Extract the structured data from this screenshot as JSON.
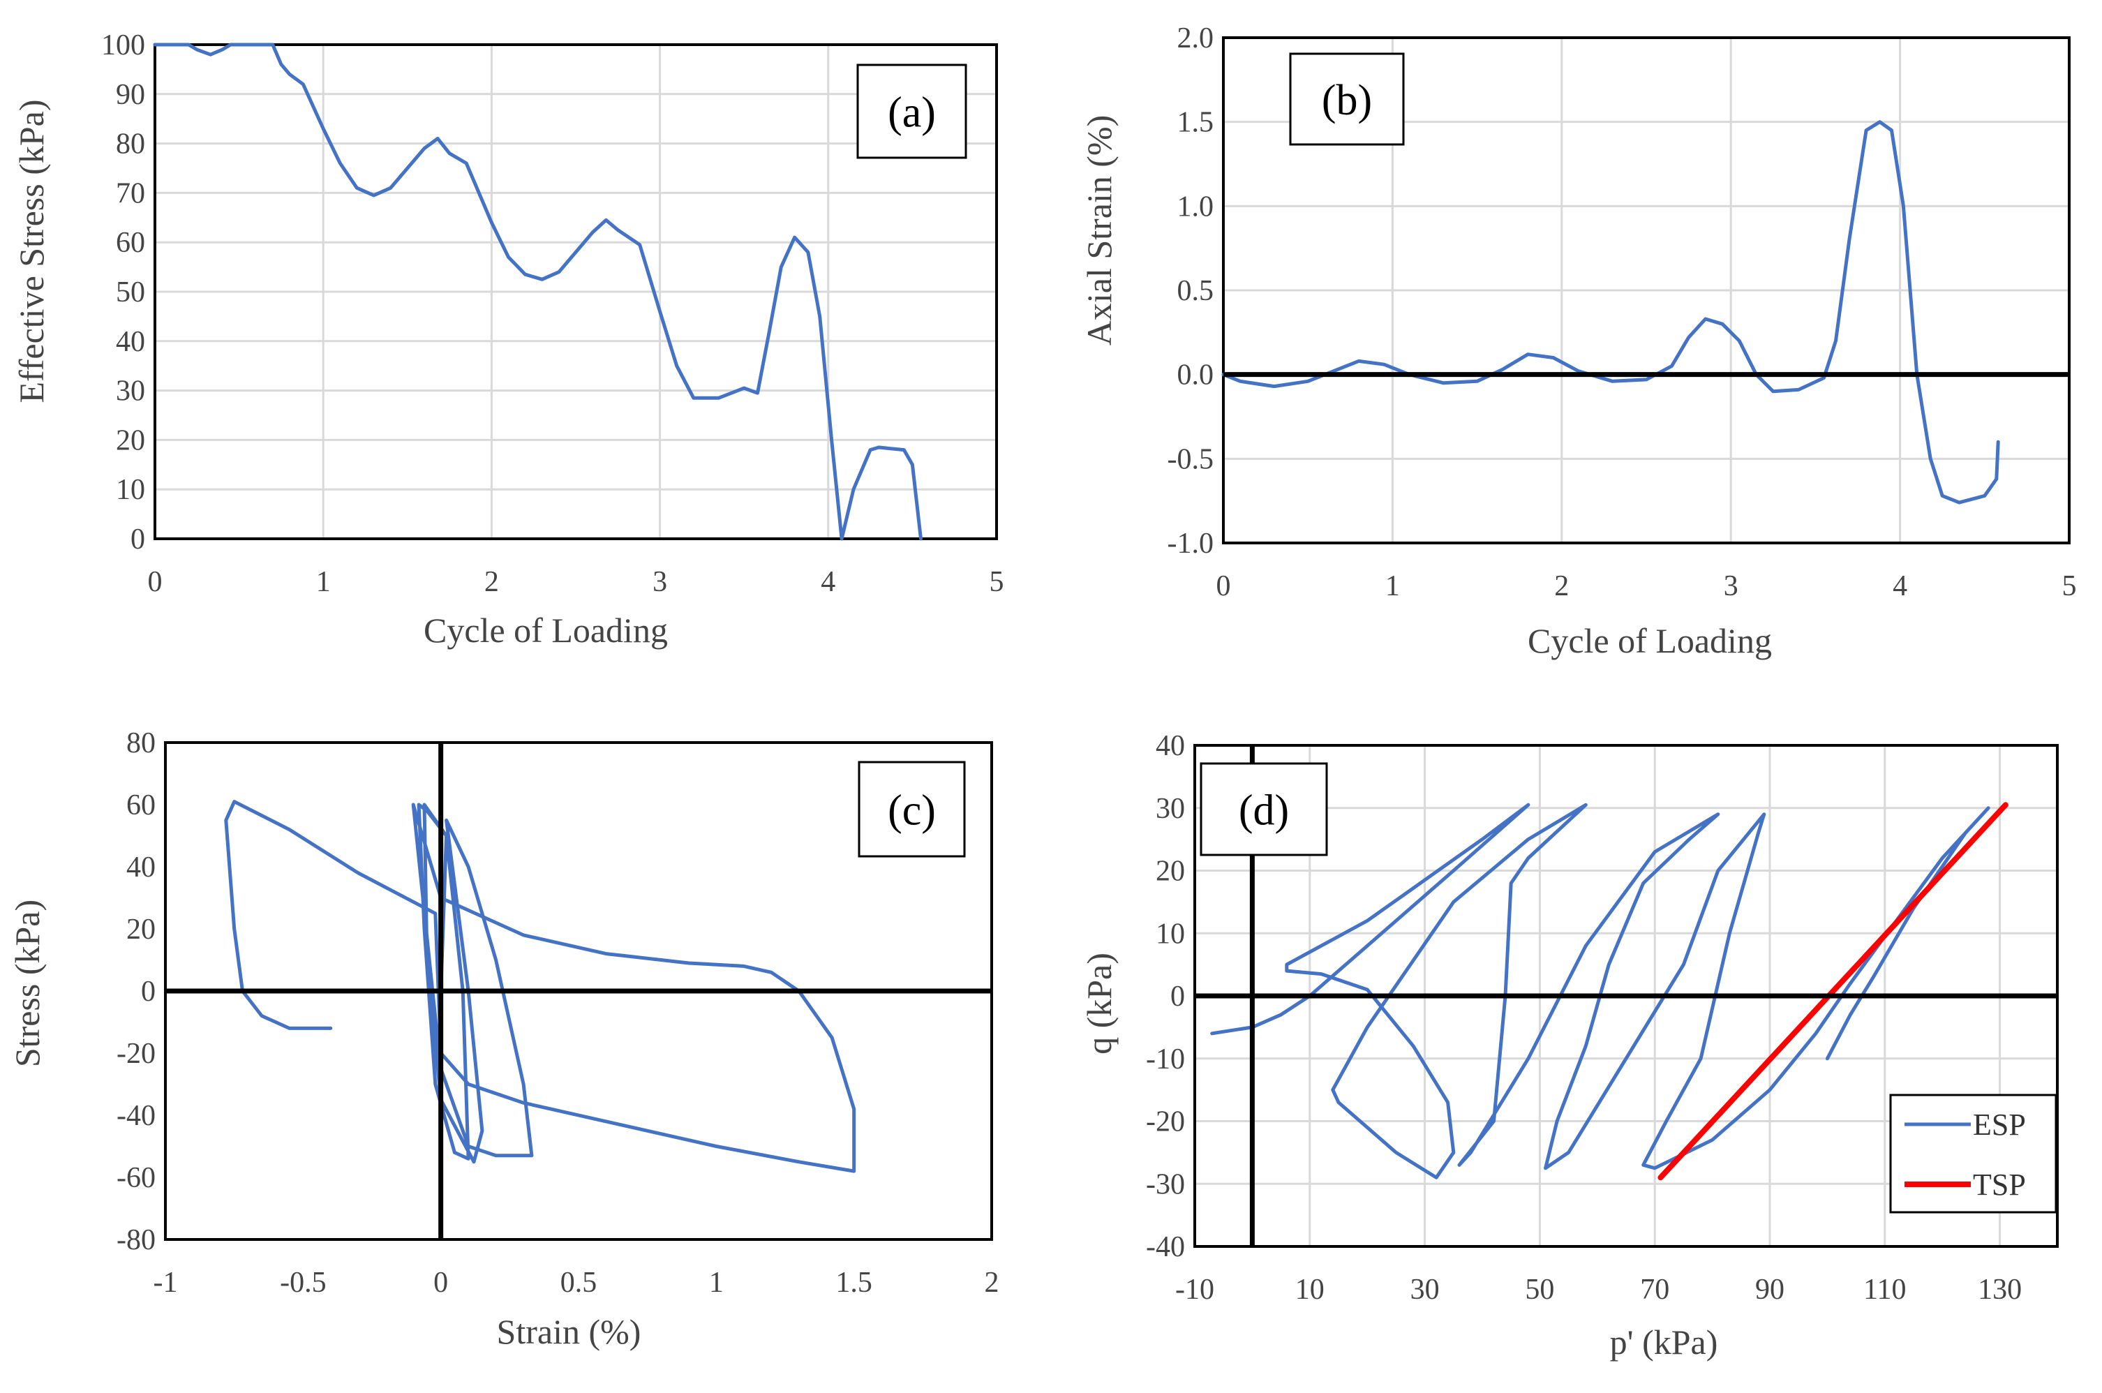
{
  "colors": {
    "esp": "#4472C4",
    "tsp": "#FF0000",
    "axis": "#000000",
    "grid": "#D9D9D9"
  },
  "chart_data": [
    {
      "id": "a",
      "type": "line",
      "panel_label": "(a)",
      "xlabel": "Cycle of Loading",
      "ylabel": "Effective Stress (kPa)",
      "xlim": [
        0,
        5
      ],
      "ylim": [
        0,
        100
      ],
      "xticks": [
        0,
        1,
        2,
        3,
        4,
        5
      ],
      "yticks": [
        0,
        10,
        20,
        30,
        40,
        50,
        60,
        70,
        80,
        90,
        100
      ],
      "grid": true,
      "zero_lines": [],
      "series": [
        {
          "name": "Effective Stress",
          "color": "#4472C4",
          "points": [
            [
              0,
              100
            ],
            [
              0.2,
              100
            ],
            [
              0.25,
              99
            ],
            [
              0.33,
              98
            ],
            [
              0.4,
              99
            ],
            [
              0.45,
              100
            ],
            [
              0.7,
              100
            ],
            [
              0.75,
              96
            ],
            [
              0.8,
              94
            ],
            [
              0.88,
              92
            ],
            [
              1,
              83
            ],
            [
              1.1,
              76
            ],
            [
              1.2,
              71
            ],
            [
              1.3,
              69.5
            ],
            [
              1.4,
              71
            ],
            [
              1.5,
              75
            ],
            [
              1.6,
              79
            ],
            [
              1.68,
              81
            ],
            [
              1.75,
              78
            ],
            [
              1.85,
              76
            ],
            [
              2,
              64
            ],
            [
              2.1,
              57
            ],
            [
              2.2,
              53.5
            ],
            [
              2.3,
              52.5
            ],
            [
              2.4,
              54
            ],
            [
              2.5,
              58
            ],
            [
              2.6,
              62
            ],
            [
              2.68,
              64.5
            ],
            [
              2.75,
              62.5
            ],
            [
              2.88,
              59.5
            ],
            [
              3,
              46
            ],
            [
              3.1,
              35
            ],
            [
              3.2,
              28.5
            ],
            [
              3.35,
              28.5
            ],
            [
              3.5,
              30.5
            ],
            [
              3.58,
              29.5
            ],
            [
              3.65,
              42
            ],
            [
              3.72,
              55
            ],
            [
              3.8,
              61
            ],
            [
              3.88,
              58
            ],
            [
              3.95,
              45
            ],
            [
              4.02,
              20
            ],
            [
              4.08,
              0
            ],
            [
              4.15,
              10
            ],
            [
              4.25,
              18
            ],
            [
              4.3,
              18.5
            ],
            [
              4.45,
              18
            ],
            [
              4.5,
              15
            ],
            [
              4.55,
              0
            ]
          ]
        }
      ]
    },
    {
      "id": "b",
      "type": "line",
      "panel_label": "(b)",
      "xlabel": "Cycle of Loading",
      "ylabel": "Axial Strain (%)",
      "xlim": [
        0,
        5
      ],
      "ylim": [
        -1.0,
        2.0
      ],
      "xticks": [
        0,
        1,
        2,
        3,
        4,
        5
      ],
      "yticks": [
        -1.0,
        -0.5,
        0.0,
        0.5,
        1.0,
        1.5,
        2.0
      ],
      "ytick_labels": [
        "-1.0",
        "-0.5",
        "0.0",
        "0.5",
        "1.0",
        "1.5",
        "2.0"
      ],
      "grid": true,
      "zero_lines": [
        "y"
      ],
      "series": [
        {
          "name": "Axial Strain",
          "color": "#4472C4",
          "points": [
            [
              0,
              0
            ],
            [
              0.1,
              -0.04
            ],
            [
              0.3,
              -0.07
            ],
            [
              0.5,
              -0.04
            ],
            [
              0.65,
              0.02
            ],
            [
              0.8,
              0.08
            ],
            [
              0.95,
              0.06
            ],
            [
              1.1,
              0.0
            ],
            [
              1.3,
              -0.05
            ],
            [
              1.5,
              -0.04
            ],
            [
              1.65,
              0.03
            ],
            [
              1.8,
              0.12
            ],
            [
              1.95,
              0.1
            ],
            [
              2.1,
              0.02
            ],
            [
              2.3,
              -0.04
            ],
            [
              2.5,
              -0.03
            ],
            [
              2.65,
              0.05
            ],
            [
              2.75,
              0.22
            ],
            [
              2.85,
              0.33
            ],
            [
              2.95,
              0.3
            ],
            [
              3.05,
              0.2
            ],
            [
              3.15,
              0.0
            ],
            [
              3.25,
              -0.1
            ],
            [
              3.4,
              -0.09
            ],
            [
              3.55,
              -0.02
            ],
            [
              3.62,
              0.2
            ],
            [
              3.7,
              0.8
            ],
            [
              3.8,
              1.45
            ],
            [
              3.88,
              1.5
            ],
            [
              3.95,
              1.45
            ],
            [
              4.02,
              1.0
            ],
            [
              4.1,
              0.0
            ],
            [
              4.18,
              -0.5
            ],
            [
              4.25,
              -0.72
            ],
            [
              4.35,
              -0.76
            ],
            [
              4.5,
              -0.72
            ],
            [
              4.57,
              -0.62
            ],
            [
              4.58,
              -0.4
            ]
          ]
        }
      ]
    },
    {
      "id": "c",
      "type": "line",
      "panel_label": "(c)",
      "xlabel": "Strain (%)",
      "ylabel": "Stress (kPa)",
      "xlim": [
        -1,
        2
      ],
      "ylim": [
        -80,
        80
      ],
      "xticks": [
        -1,
        -0.5,
        0,
        0.5,
        1,
        1.5,
        2
      ],
      "yticks": [
        -80,
        -60,
        -40,
        -20,
        0,
        20,
        40,
        60,
        80
      ],
      "grid": false,
      "zero_lines": [
        "x",
        "y"
      ],
      "series": [
        {
          "name": "Stress-Strain",
          "color": "#4472C4",
          "points": [
            [
              0,
              0
            ],
            [
              0.02,
              50
            ],
            [
              -0.05,
              58
            ],
            [
              -0.08,
              60
            ],
            [
              -0.06,
              20
            ],
            [
              -0.02,
              -30
            ],
            [
              0.05,
              -52
            ],
            [
              0.1,
              -54
            ],
            [
              0.08,
              0
            ],
            [
              0.02,
              50
            ],
            [
              -0.06,
              60
            ],
            [
              -0.05,
              10
            ],
            [
              0,
              -35
            ],
            [
              0.12,
              -55
            ],
            [
              0.15,
              -45
            ],
            [
              0.1,
              0
            ],
            [
              0.02,
              55
            ],
            [
              0.1,
              40
            ],
            [
              0.2,
              10
            ],
            [
              0.3,
              -30
            ],
            [
              0.33,
              -53
            ],
            [
              0.2,
              -53
            ],
            [
              0.1,
              -50
            ],
            [
              0.0,
              -25
            ],
            [
              -0.03,
              0
            ],
            [
              -0.1,
              60
            ],
            [
              0.0,
              30
            ],
            [
              0.3,
              18
            ],
            [
              0.6,
              12
            ],
            [
              0.9,
              9
            ],
            [
              1.1,
              8
            ],
            [
              1.2,
              6
            ],
            [
              1.3,
              0
            ],
            [
              1.42,
              -15
            ],
            [
              1.5,
              -38
            ],
            [
              1.5,
              -58
            ],
            [
              1.3,
              -55
            ],
            [
              1.0,
              -50
            ],
            [
              0.6,
              -42
            ],
            [
              0.3,
              -36
            ],
            [
              0.1,
              -30
            ],
            [
              0.0,
              -20
            ],
            [
              -0.02,
              25
            ],
            [
              -0.3,
              38
            ],
            [
              -0.55,
              52
            ],
            [
              -0.75,
              61
            ],
            [
              -0.78,
              55
            ],
            [
              -0.75,
              20
            ],
            [
              -0.72,
              0
            ],
            [
              -0.65,
              -8
            ],
            [
              -0.55,
              -12
            ],
            [
              -0.4,
              -12
            ]
          ]
        }
      ]
    },
    {
      "id": "d",
      "type": "line",
      "panel_label": "(d)",
      "xlabel": "p' (kPa)",
      "ylabel": "q (kPa)",
      "xlim": [
        -10,
        140
      ],
      "ylim": [
        -40,
        40
      ],
      "xticks": [
        -10,
        10,
        30,
        50,
        70,
        90,
        110,
        130
      ],
      "yticks": [
        -40,
        -30,
        -20,
        -10,
        0,
        10,
        20,
        30,
        40
      ],
      "grid": true,
      "zero_lines": [
        "x",
        "y"
      ],
      "legend": {
        "placement": "bottom-right",
        "entries": [
          "ESP",
          "TSP"
        ]
      },
      "series": [
        {
          "name": "ESP",
          "color": "#4472C4",
          "points": [
            [
              -7,
              -6
            ],
            [
              0,
              -5
            ],
            [
              5,
              -3
            ],
            [
              10,
              0
            ],
            [
              20,
              8
            ],
            [
              35,
              20
            ],
            [
              48,
              30.5
            ],
            [
              40,
              25
            ],
            [
              20,
              12
            ],
            [
              6,
              5
            ],
            [
              6,
              4
            ],
            [
              12,
              3.5
            ],
            [
              20,
              1
            ],
            [
              28,
              -8
            ],
            [
              34,
              -17
            ],
            [
              35,
              -25
            ],
            [
              32,
              -29
            ],
            [
              25,
              -25
            ],
            [
              15,
              -17
            ],
            [
              14,
              -15
            ],
            [
              20,
              -5
            ],
            [
              35,
              15
            ],
            [
              48,
              25
            ],
            [
              58,
              30.5
            ],
            [
              48,
              22
            ],
            [
              45,
              18
            ],
            [
              44,
              0
            ],
            [
              42,
              -20
            ],
            [
              36,
              -27
            ],
            [
              38,
              -25
            ],
            [
              48,
              -10
            ],
            [
              58,
              8
            ],
            [
              70,
              23
            ],
            [
              81,
              29
            ],
            [
              76,
              25
            ],
            [
              68,
              18
            ],
            [
              62,
              5
            ],
            [
              58,
              -8
            ],
            [
              53,
              -20
            ],
            [
              51,
              -27.5
            ],
            [
              55,
              -25
            ],
            [
              65,
              -10
            ],
            [
              75,
              5
            ],
            [
              81,
              20
            ],
            [
              89,
              29
            ],
            [
              88,
              26
            ],
            [
              83,
              10
            ],
            [
              78,
              -10
            ],
            [
              72,
              -20
            ],
            [
              68,
              -27
            ],
            [
              70,
              -27.5
            ],
            [
              80,
              -23
            ],
            [
              90,
              -15
            ],
            [
              98,
              -6
            ],
            [
              104,
              2
            ],
            [
              112,
              12
            ],
            [
              120,
              22
            ],
            [
              128,
              30
            ],
            [
              124,
              26
            ],
            [
              115,
              14
            ],
            [
              108,
              3
            ],
            [
              104,
              -3
            ],
            [
              100,
              -10
            ]
          ]
        },
        {
          "name": "TSP",
          "color": "#FF0000",
          "points": [
            [
              71,
              -29
            ],
            [
              131,
              30.5
            ]
          ]
        }
      ]
    }
  ]
}
